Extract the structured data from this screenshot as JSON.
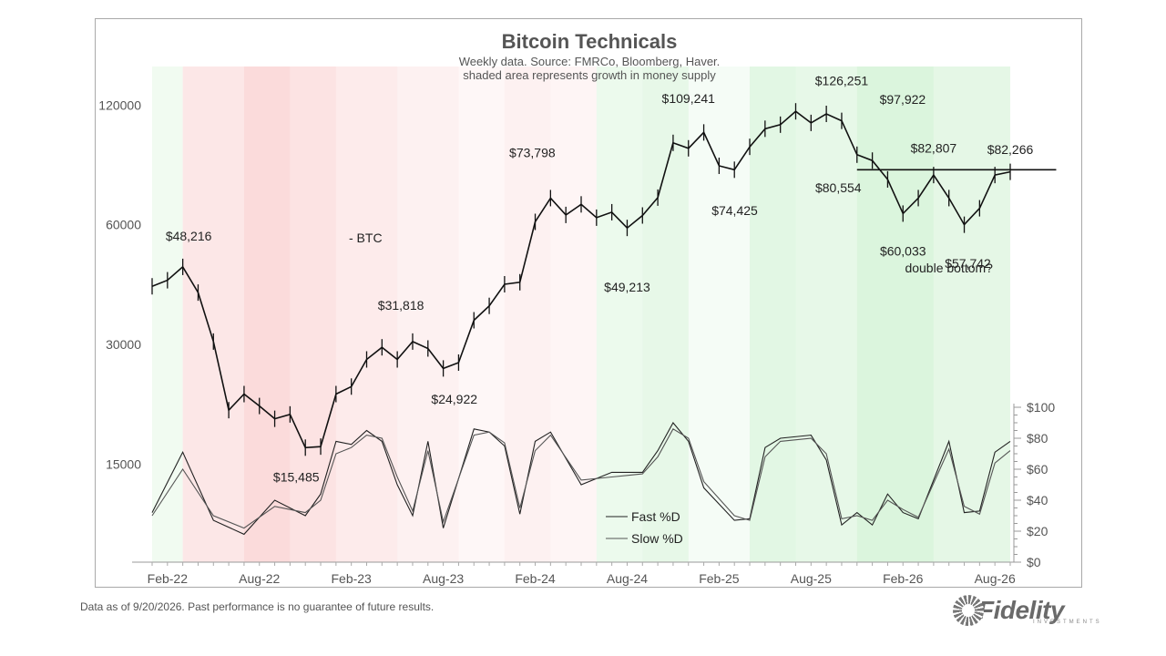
{
  "chart_data": {
    "type": "line",
    "title": "Bitcoin Technicals",
    "subtitle_lines": [
      "Weekly data.  Source: FMRCo, Bloomberg, Haver.",
      "shaded area represents growth in money supply"
    ],
    "x_tick_labels": [
      "Feb-22",
      "Aug-22",
      "Feb-23",
      "Aug-23",
      "Feb-24",
      "Aug-24",
      "Feb-25",
      "Aug-25",
      "Feb-26",
      "Aug-26"
    ],
    "x_ticks": [
      "2022-02",
      "2022-08",
      "2023-02",
      "2023-08",
      "2024-02",
      "2024-08",
      "2025-02",
      "2025-08",
      "2026-02",
      "2026-08"
    ],
    "x_range": [
      "2022-01",
      "2026-09"
    ],
    "y_left": {
      "scale": "log",
      "ticks": [
        15000,
        30000,
        60000,
        120000
      ],
      "tick_labels": [
        "15000",
        "30000",
        "60000",
        "120000"
      ],
      "ylim": [
        8500,
        150000
      ]
    },
    "y_right": {
      "ticks": [
        0,
        20,
        40,
        60,
        80,
        100
      ],
      "tick_labels": [
        "$0",
        "$20",
        "$40",
        "$60",
        "$80",
        "$100"
      ],
      "ylim": [
        0,
        100
      ]
    },
    "btc_series": {
      "name": "BTC",
      "label": "- BTC",
      "points": [
        [
          "2022-01",
          42000
        ],
        [
          "2022-02",
          43500
        ],
        [
          "2022-03",
          47000
        ],
        [
          "2022-04",
          40500
        ],
        [
          "2022-05",
          30500
        ],
        [
          "2022-06",
          20500
        ],
        [
          "2022-07",
          22500
        ],
        [
          "2022-08",
          21000
        ],
        [
          "2022-09",
          19500
        ],
        [
          "2022-10",
          20000
        ],
        [
          "2022-11",
          16500
        ],
        [
          "2022-12",
          16600
        ],
        [
          "2023-01",
          22500
        ],
        [
          "2023-02",
          23500
        ],
        [
          "2023-03",
          27500
        ],
        [
          "2023-04",
          29500
        ],
        [
          "2023-05",
          27500
        ],
        [
          "2023-06",
          30500
        ],
        [
          "2023-07",
          29300
        ],
        [
          "2023-08",
          26100
        ],
        [
          "2023-09",
          27000
        ],
        [
          "2023-10",
          34500
        ],
        [
          "2023-11",
          37500
        ],
        [
          "2023-12",
          42500
        ],
        [
          "2024-01",
          43000
        ],
        [
          "2024-02",
          61000
        ],
        [
          "2024-03",
          70000
        ],
        [
          "2024-04",
          63500
        ],
        [
          "2024-05",
          67500
        ],
        [
          "2024-06",
          62500
        ],
        [
          "2024-07",
          64500
        ],
        [
          "2024-08",
          58900
        ],
        [
          "2024-09",
          63300
        ],
        [
          "2024-10",
          70200
        ],
        [
          "2024-11",
          96400
        ],
        [
          "2024-12",
          93400
        ],
        [
          "2025-01",
          102400
        ],
        [
          "2025-02",
          84400
        ],
        [
          "2025-03",
          82500
        ],
        [
          "2025-04",
          94200
        ],
        [
          "2025-05",
          104600
        ],
        [
          "2025-06",
          107100
        ],
        [
          "2025-07",
          115700
        ],
        [
          "2025-08",
          108200
        ],
        [
          "2025-09",
          114000
        ],
        [
          "2025-10",
          109500
        ],
        [
          "2025-11",
          90000
        ],
        [
          "2025-12",
          87000
        ],
        [
          "2026-01",
          78000
        ],
        [
          "2026-02",
          64000
        ],
        [
          "2026-03",
          70000
        ],
        [
          "2026-04",
          80000
        ],
        [
          "2026-05",
          70000
        ],
        [
          "2026-06",
          60000
        ],
        [
          "2026-07",
          66000
        ],
        [
          "2026-08",
          80000
        ],
        [
          "2026-09",
          81500
        ]
      ]
    },
    "stochastic": [
      {
        "name": "Fast %D",
        "points": [
          [
            "2022-01",
            32
          ],
          [
            "2022-03",
            71
          ],
          [
            "2022-05",
            27
          ],
          [
            "2022-07",
            18
          ],
          [
            "2022-09",
            40
          ],
          [
            "2022-11",
            30
          ],
          [
            "2022-12",
            44
          ],
          [
            "2023-01",
            78
          ],
          [
            "2023-02",
            76
          ],
          [
            "2023-03",
            85
          ],
          [
            "2023-04",
            78
          ],
          [
            "2023-05",
            50
          ],
          [
            "2023-06",
            30
          ],
          [
            "2023-07",
            78
          ],
          [
            "2023-08",
            22
          ],
          [
            "2023-10",
            86
          ],
          [
            "2023-11",
            84
          ],
          [
            "2023-12",
            75
          ],
          [
            "2024-01",
            31
          ],
          [
            "2024-02",
            78
          ],
          [
            "2024-03",
            84
          ],
          [
            "2024-05",
            50
          ],
          [
            "2024-07",
            58
          ],
          [
            "2024-08",
            58
          ],
          [
            "2024-09",
            58
          ],
          [
            "2024-10",
            72
          ],
          [
            "2024-11",
            90
          ],
          [
            "2024-12",
            78
          ],
          [
            "2025-01",
            48
          ],
          [
            "2025-03",
            27
          ],
          [
            "2025-04",
            28
          ],
          [
            "2025-05",
            74
          ],
          [
            "2025-06",
            80
          ],
          [
            "2025-08",
            82
          ],
          [
            "2025-09",
            66
          ],
          [
            "2025-10",
            24
          ],
          [
            "2025-11",
            32
          ],
          [
            "2025-12",
            24
          ],
          [
            "2026-01",
            44
          ],
          [
            "2026-02",
            32
          ],
          [
            "2026-03",
            28
          ],
          [
            "2026-05",
            78
          ],
          [
            "2026-06",
            32
          ],
          [
            "2026-07",
            33
          ],
          [
            "2026-08",
            71
          ],
          [
            "2026-09",
            78
          ]
        ]
      },
      {
        "name": "Slow %D",
        "points": [
          [
            "2022-01",
            30
          ],
          [
            "2022-03",
            60
          ],
          [
            "2022-05",
            30
          ],
          [
            "2022-07",
            22
          ],
          [
            "2022-09",
            36
          ],
          [
            "2022-11",
            32
          ],
          [
            "2022-12",
            40
          ],
          [
            "2023-01",
            70
          ],
          [
            "2023-02",
            74
          ],
          [
            "2023-03",
            82
          ],
          [
            "2023-04",
            80
          ],
          [
            "2023-05",
            55
          ],
          [
            "2023-06",
            33
          ],
          [
            "2023-07",
            72
          ],
          [
            "2023-08",
            26
          ],
          [
            "2023-10",
            82
          ],
          [
            "2023-11",
            84
          ],
          [
            "2023-12",
            77
          ],
          [
            "2024-01",
            35
          ],
          [
            "2024-02",
            72
          ],
          [
            "2024-03",
            82
          ],
          [
            "2024-05",
            53
          ],
          [
            "2024-07",
            55
          ],
          [
            "2024-08",
            56
          ],
          [
            "2024-09",
            57
          ],
          [
            "2024-10",
            68
          ],
          [
            "2024-11",
            86
          ],
          [
            "2024-12",
            80
          ],
          [
            "2025-01",
            52
          ],
          [
            "2025-03",
            30
          ],
          [
            "2025-04",
            27
          ],
          [
            "2025-05",
            68
          ],
          [
            "2025-06",
            78
          ],
          [
            "2025-08",
            80
          ],
          [
            "2025-09",
            70
          ],
          [
            "2025-10",
            28
          ],
          [
            "2025-11",
            30
          ],
          [
            "2025-12",
            27
          ],
          [
            "2026-01",
            40
          ],
          [
            "2026-02",
            34
          ],
          [
            "2026-03",
            29
          ],
          [
            "2026-05",
            73
          ],
          [
            "2026-06",
            36
          ],
          [
            "2026-07",
            31
          ],
          [
            "2026-08",
            64
          ],
          [
            "2026-09",
            72
          ]
        ]
      }
    ],
    "annotations": [
      {
        "text": "$48,216",
        "x": "2022-02",
        "y": 48216
      },
      {
        "text": "$15,485",
        "x": "2022-11",
        "y": 15485
      },
      {
        "text": "$31,818",
        "x": "2023-07",
        "y": 31818
      },
      {
        "text": "$24,922",
        "x": "2023-09",
        "y": 24922
      },
      {
        "text": "$73,798",
        "x": "2024-03",
        "y": 73798
      },
      {
        "text": "$49,213",
        "x": "2024-08",
        "y": 49213
      },
      {
        "text": "$109,241",
        "x": "2024-12",
        "y": 109241
      },
      {
        "text": "$74,425",
        "x": "2025-03",
        "y": 74425
      },
      {
        "text": "$126,251",
        "x": "2025-10",
        "y": 126251
      },
      {
        "text": "$97,922",
        "x": "2025-12",
        "y": 97922
      },
      {
        "text": "$80,554",
        "x": "2025-12",
        "y": 80554
      },
      {
        "text": "$82,807",
        "x": "2026-04",
        "y": 82807
      },
      {
        "text": "$60,033",
        "x": "2026-02",
        "y": 60033
      },
      {
        "text": "$82,266",
        "x": "2026-09",
        "y": 82266
      },
      {
        "text": "$57,742",
        "x": "2026-06",
        "y": 57742
      },
      {
        "text": "double bottom?",
        "x": "2026-05",
        "y": 45500
      }
    ],
    "resistance_line": {
      "y": 82500,
      "x_start": "2025-11",
      "x_end": "2026-12"
    },
    "legend": [
      "Fast %D",
      "Slow %D"
    ],
    "shading": {
      "description_ref": "subtitle_lines.1",
      "red_color": "#f7b6b6",
      "green_color": "#a8e6ad",
      "periods": [
        {
          "start": "2022-01",
          "end": "2022-03",
          "color": "green",
          "level": 0.3
        },
        {
          "start": "2022-03",
          "end": "2022-07",
          "color": "red",
          "level": 0.6
        },
        {
          "start": "2022-07",
          "end": "2022-10",
          "color": "red",
          "level": 0.9
        },
        {
          "start": "2022-10",
          "end": "2023-01",
          "color": "red",
          "level": 0.7
        },
        {
          "start": "2023-01",
          "end": "2023-05",
          "color": "red",
          "level": 0.5
        },
        {
          "start": "2023-05",
          "end": "2023-09",
          "color": "red",
          "level": 0.35
        },
        {
          "start": "2023-09",
          "end": "2023-12",
          "color": "red",
          "level": 0.2
        },
        {
          "start": "2023-12",
          "end": "2024-03",
          "color": "red",
          "level": 0.35
        },
        {
          "start": "2024-03",
          "end": "2024-06",
          "color": "red",
          "level": 0.25
        },
        {
          "start": "2024-06",
          "end": "2024-09",
          "color": "green",
          "level": 0.4
        },
        {
          "start": "2024-09",
          "end": "2024-12",
          "color": "green",
          "level": 0.5
        },
        {
          "start": "2024-12",
          "end": "2025-04",
          "color": "green",
          "level": 0.2
        },
        {
          "start": "2025-04",
          "end": "2025-07",
          "color": "green",
          "level": 0.6
        },
        {
          "start": "2025-07",
          "end": "2025-11",
          "color": "green",
          "level": 0.5
        },
        {
          "start": "2025-11",
          "end": "2026-04",
          "color": "green",
          "level": 0.75
        },
        {
          "start": "2026-04",
          "end": "2026-09",
          "color": "green",
          "level": 0.55
        }
      ]
    },
    "grid": false
  },
  "footnote": "Data as of 9/20/2026. Past performance is no guarantee of future results.",
  "brand": {
    "name": "Fidelity",
    "tagline": "INVESTMENTS"
  }
}
